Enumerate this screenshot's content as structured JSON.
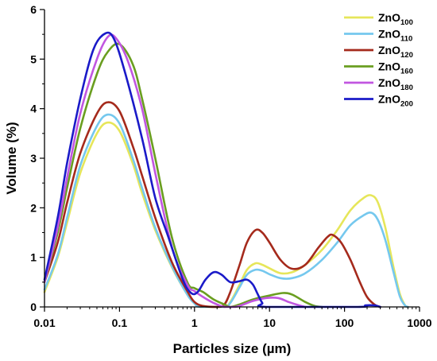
{
  "chart_data": {
    "type": "line",
    "xlabel": "Particles size (µm)",
    "ylabel": "Volume (%)",
    "xscale": "log",
    "xlim": [
      0.01,
      1000
    ],
    "ylim": [
      0,
      6
    ],
    "x_ticks": [
      {
        "value": 0.01,
        "label": "0.01"
      },
      {
        "value": 0.1,
        "label": "0.1"
      },
      {
        "value": 1,
        "label": "1"
      },
      {
        "value": 10,
        "label": "10"
      },
      {
        "value": 100,
        "label": "100"
      },
      {
        "value": 1000,
        "label": "1000"
      }
    ],
    "y_ticks": [
      {
        "value": 0,
        "label": "0"
      },
      {
        "value": 1,
        "label": "1"
      },
      {
        "value": 2,
        "label": "2"
      },
      {
        "value": 3,
        "label": "3"
      },
      {
        "value": 4,
        "label": "4"
      },
      {
        "value": 5,
        "label": "5"
      },
      {
        "value": 6,
        "label": "6"
      }
    ],
    "legend_position": "top-right",
    "grid": false,
    "series": [
      {
        "name": "ZnO100",
        "base": "ZnO",
        "sub": "100",
        "color": "#e6e65a",
        "points": [
          [
            0.01,
            0.3
          ],
          [
            0.015,
            1.0
          ],
          [
            0.02,
            1.7
          ],
          [
            0.03,
            2.7
          ],
          [
            0.05,
            3.5
          ],
          [
            0.07,
            3.72
          ],
          [
            0.1,
            3.55
          ],
          [
            0.15,
            2.9
          ],
          [
            0.2,
            2.3
          ],
          [
            0.3,
            1.55
          ],
          [
            0.5,
            0.8
          ],
          [
            0.8,
            0.25
          ],
          [
            1.0,
            0.07
          ],
          [
            1.2,
            0.0
          ],
          [
            2.5,
            0.0
          ],
          [
            3.0,
            0.1
          ],
          [
            4.0,
            0.45
          ],
          [
            5.0,
            0.75
          ],
          [
            6.5,
            0.88
          ],
          [
            8.0,
            0.85
          ],
          [
            10,
            0.78
          ],
          [
            14,
            0.68
          ],
          [
            20,
            0.7
          ],
          [
            30,
            0.85
          ],
          [
            50,
            1.15
          ],
          [
            80,
            1.55
          ],
          [
            120,
            1.95
          ],
          [
            180,
            2.2
          ],
          [
            230,
            2.25
          ],
          [
            280,
            2.1
          ],
          [
            350,
            1.6
          ],
          [
            450,
            0.8
          ],
          [
            550,
            0.25
          ],
          [
            650,
            0.02
          ],
          [
            700,
            0.0
          ]
        ]
      },
      {
        "name": "ZnO110",
        "base": "ZnO",
        "sub": "110",
        "color": "#75c8ee",
        "points": [
          [
            0.01,
            0.35
          ],
          [
            0.015,
            1.05
          ],
          [
            0.02,
            1.8
          ],
          [
            0.03,
            2.85
          ],
          [
            0.05,
            3.65
          ],
          [
            0.07,
            3.88
          ],
          [
            0.1,
            3.7
          ],
          [
            0.15,
            3.0
          ],
          [
            0.2,
            2.4
          ],
          [
            0.3,
            1.6
          ],
          [
            0.5,
            0.82
          ],
          [
            0.8,
            0.25
          ],
          [
            1.0,
            0.07
          ],
          [
            1.2,
            0.0
          ],
          [
            2.5,
            0.0
          ],
          [
            3.0,
            0.08
          ],
          [
            4.0,
            0.4
          ],
          [
            5.0,
            0.65
          ],
          [
            6.5,
            0.75
          ],
          [
            8.0,
            0.73
          ],
          [
            10,
            0.66
          ],
          [
            14,
            0.58
          ],
          [
            20,
            0.58
          ],
          [
            30,
            0.68
          ],
          [
            50,
            0.95
          ],
          [
            80,
            1.3
          ],
          [
            120,
            1.65
          ],
          [
            180,
            1.85
          ],
          [
            230,
            1.9
          ],
          [
            280,
            1.75
          ],
          [
            350,
            1.35
          ],
          [
            450,
            0.7
          ],
          [
            550,
            0.2
          ],
          [
            650,
            0.02
          ],
          [
            700,
            0.0
          ]
        ]
      },
      {
        "name": "ZnO120",
        "base": "ZnO",
        "sub": "120",
        "color": "#a52a1c",
        "points": [
          [
            0.01,
            0.5
          ],
          [
            0.015,
            1.3
          ],
          [
            0.02,
            2.1
          ],
          [
            0.03,
            3.1
          ],
          [
            0.05,
            3.9
          ],
          [
            0.07,
            4.13
          ],
          [
            0.1,
            3.95
          ],
          [
            0.15,
            3.25
          ],
          [
            0.2,
            2.65
          ],
          [
            0.3,
            1.8
          ],
          [
            0.5,
            0.9
          ],
          [
            0.8,
            0.32
          ],
          [
            1.0,
            0.1
          ],
          [
            1.3,
            0.02
          ],
          [
            2.0,
            0.0
          ],
          [
            2.5,
            0.05
          ],
          [
            3.0,
            0.3
          ],
          [
            4.0,
            0.85
          ],
          [
            5.0,
            1.3
          ],
          [
            6.5,
            1.55
          ],
          [
            8.0,
            1.5
          ],
          [
            10,
            1.3
          ],
          [
            14,
            0.95
          ],
          [
            20,
            0.77
          ],
          [
            30,
            0.85
          ],
          [
            45,
            1.2
          ],
          [
            60,
            1.42
          ],
          [
            70,
            1.45
          ],
          [
            90,
            1.3
          ],
          [
            120,
            0.95
          ],
          [
            160,
            0.5
          ],
          [
            200,
            0.2
          ],
          [
            250,
            0.05
          ],
          [
            300,
            0.0
          ]
        ]
      },
      {
        "name": "ZnO160",
        "base": "ZnO",
        "sub": "160",
        "color": "#6a9e20",
        "points": [
          [
            0.01,
            0.5
          ],
          [
            0.015,
            1.5
          ],
          [
            0.02,
            2.4
          ],
          [
            0.03,
            3.6
          ],
          [
            0.05,
            4.7
          ],
          [
            0.07,
            5.15
          ],
          [
            0.1,
            5.3
          ],
          [
            0.15,
            4.9
          ],
          [
            0.2,
            4.2
          ],
          [
            0.3,
            3.0
          ],
          [
            0.5,
            1.4
          ],
          [
            0.8,
            0.5
          ],
          [
            1.0,
            0.38
          ],
          [
            1.3,
            0.3
          ],
          [
            1.8,
            0.15
          ],
          [
            2.5,
            0.05
          ],
          [
            3.0,
            0.0
          ],
          [
            4.0,
            0.05
          ],
          [
            6.0,
            0.15
          ],
          [
            10,
            0.23
          ],
          [
            15,
            0.28
          ],
          [
            20,
            0.25
          ],
          [
            30,
            0.1
          ],
          [
            40,
            0.02
          ],
          [
            50,
            0.0
          ]
        ]
      },
      {
        "name": "ZnO180",
        "base": "ZnO",
        "sub": "180",
        "color": "#c156e0",
        "points": [
          [
            0.01,
            0.5
          ],
          [
            0.015,
            1.6
          ],
          [
            0.02,
            2.6
          ],
          [
            0.03,
            3.9
          ],
          [
            0.05,
            5.0
          ],
          [
            0.07,
            5.45
          ],
          [
            0.09,
            5.42
          ],
          [
            0.13,
            4.95
          ],
          [
            0.2,
            4.0
          ],
          [
            0.3,
            2.7
          ],
          [
            0.5,
            1.2
          ],
          [
            0.8,
            0.45
          ],
          [
            1.0,
            0.32
          ],
          [
            1.3,
            0.2
          ],
          [
            1.8,
            0.08
          ],
          [
            2.5,
            0.0
          ],
          [
            3.5,
            0.0
          ],
          [
            4.5,
            0.05
          ],
          [
            6.0,
            0.12
          ],
          [
            9,
            0.18
          ],
          [
            13,
            0.18
          ],
          [
            18,
            0.1
          ],
          [
            25,
            0.03
          ],
          [
            30,
            0.0
          ]
        ]
      },
      {
        "name": "ZnO200",
        "base": "ZnO",
        "sub": "200",
        "color": "#1a1ac8",
        "points": [
          [
            0.01,
            0.55
          ],
          [
            0.015,
            1.8
          ],
          [
            0.02,
            2.9
          ],
          [
            0.03,
            4.2
          ],
          [
            0.045,
            5.2
          ],
          [
            0.065,
            5.52
          ],
          [
            0.085,
            5.4
          ],
          [
            0.12,
            4.7
          ],
          [
            0.2,
            3.4
          ],
          [
            0.3,
            2.2
          ],
          [
            0.45,
            1.4
          ],
          [
            0.7,
            0.55
          ],
          [
            0.9,
            0.28
          ],
          [
            1.1,
            0.3
          ],
          [
            1.4,
            0.55
          ],
          [
            1.8,
            0.7
          ],
          [
            2.3,
            0.65
          ],
          [
            3.0,
            0.5
          ],
          [
            4.0,
            0.52
          ],
          [
            5.0,
            0.55
          ],
          [
            6.0,
            0.45
          ],
          [
            7.0,
            0.25
          ],
          [
            8.0,
            0.08
          ],
          [
            9.0,
            0.0
          ],
          [
            150,
            0.0
          ],
          [
            190,
            0.03
          ],
          [
            250,
            0.03
          ],
          [
            300,
            0.0
          ]
        ]
      }
    ]
  }
}
